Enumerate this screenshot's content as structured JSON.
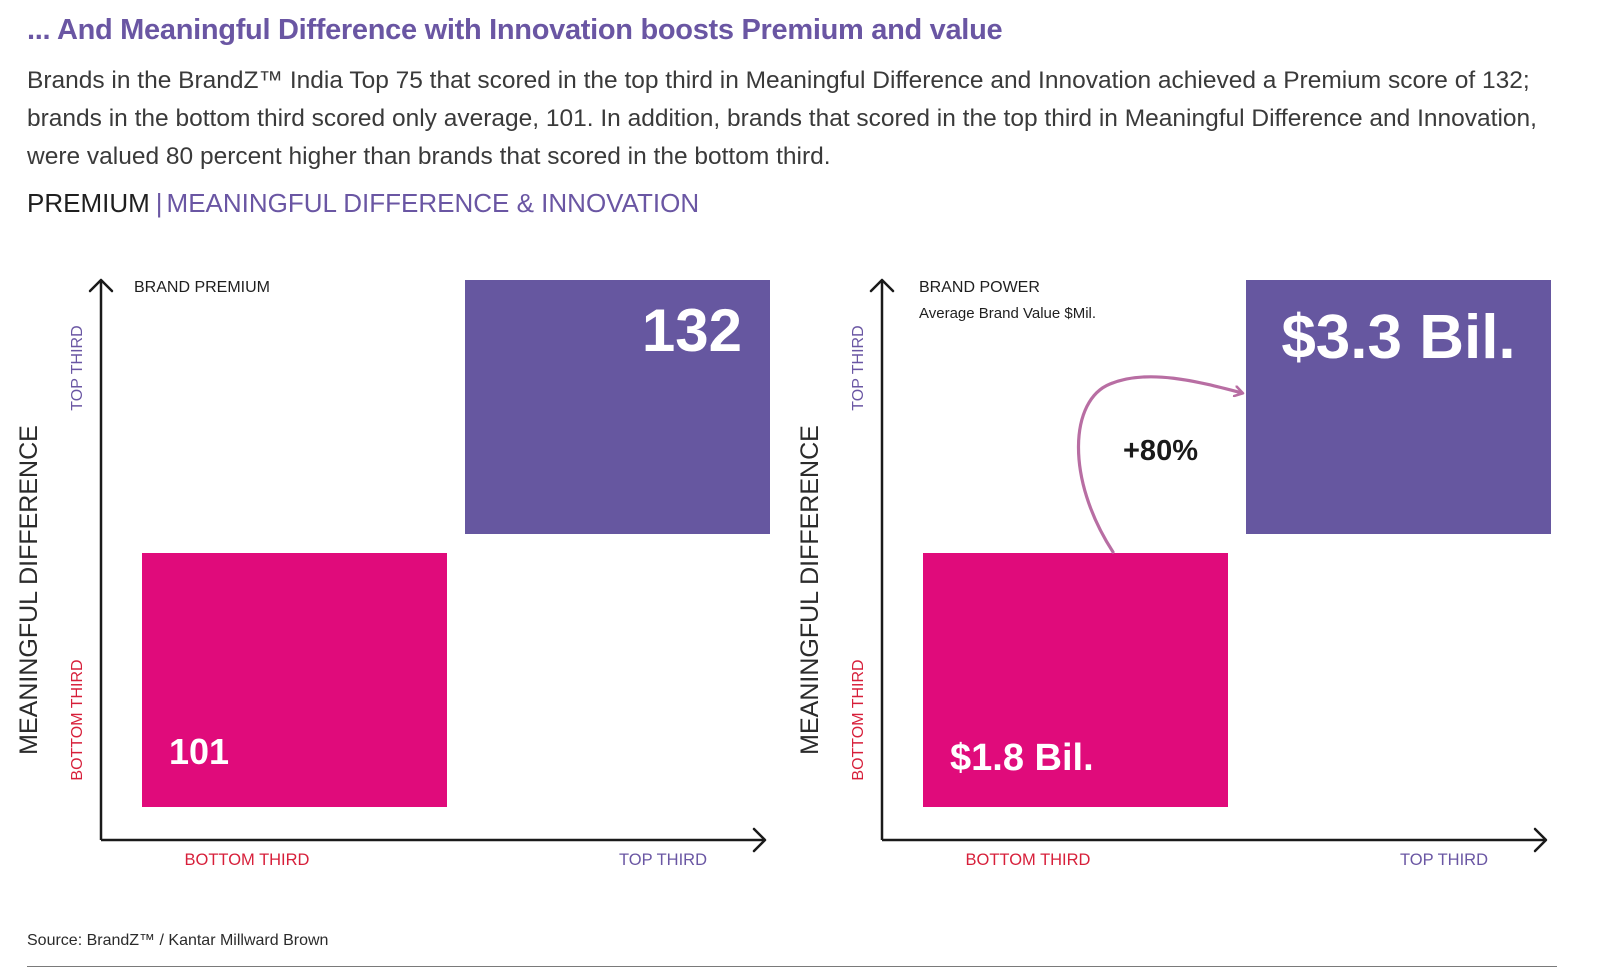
{
  "headline": "... And Meaningful Difference with Innovation boosts Premium and value",
  "intro": "Brands in the BrandZ™ India Top 75 that scored in the top third in Meaningful Difference and Innovation achieved a Premium score of 132; brands in the bottom third scored only average, 101. In addition, brands that scored in the top third in Meaningful Difference and Innovation, were valued 80 percent higher than brands that scored in the bottom third.",
  "section": {
    "left": "PREMIUM",
    "separator": "|",
    "right": "MEANINGFUL DIFFERENCE & INNOVATION"
  },
  "colors": {
    "purple": "#6657a0",
    "magenta": "#e00b7b",
    "red_label": "#d71f3a",
    "purple_label": "#6a56a3",
    "arrow": "#b86ea3",
    "axis": "#1a1a1a"
  },
  "chart_data": [
    {
      "type": "quadrant",
      "title": "BRAND PREMIUM",
      "subtitle": "",
      "y_axis_title": "MEANINGFUL DIFFERENCE",
      "y_ticks": [
        "BOTTOM THIRD",
        "TOP THIRD"
      ],
      "x_ticks": [
        "BOTTOM THIRD",
        "TOP THIRD"
      ],
      "cells": [
        {
          "x": "BOTTOM THIRD",
          "y": "BOTTOM THIRD",
          "value": 101,
          "label": "101"
        },
        {
          "x": "TOP THIRD",
          "y": "TOP THIRD",
          "value": 132,
          "label": "132"
        }
      ]
    },
    {
      "type": "quadrant",
      "title": "BRAND POWER",
      "subtitle": "Average Brand Value $Mil.",
      "y_axis_title": "MEANINGFUL DIFFERENCE",
      "y_ticks": [
        "BOTTOM THIRD",
        "TOP THIRD"
      ],
      "x_ticks": [
        "BOTTOM THIRD",
        "TOP THIRD"
      ],
      "cells": [
        {
          "x": "BOTTOM THIRD",
          "y": "BOTTOM THIRD",
          "value": 1.8,
          "label": "$1.8 Bil."
        },
        {
          "x": "TOP THIRD",
          "y": "TOP THIRD",
          "value": 3.3,
          "label": "$3.3 Bil."
        }
      ],
      "annotation": "+80%"
    }
  ],
  "footer": {
    "source": "Source: BrandZ™ / Kantar Millward Brown"
  }
}
